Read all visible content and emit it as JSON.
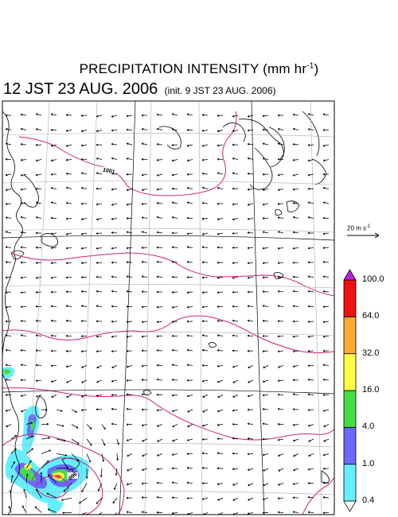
{
  "title": {
    "main": "PRECIPITATION INTENSITY (mm hr",
    "sup": "-1",
    "close": ")"
  },
  "subtitle": {
    "time": "12 JST 23 AUG. 2006",
    "init": "(init. 9 JST 23 AUG. 2006)"
  },
  "vector_scale": {
    "label": "20 m s",
    "sup": "-1"
  },
  "isobars": [
    {
      "label": "1001"
    },
    {
      "label": "996"
    }
  ],
  "colorbar": {
    "levels": [
      "0.4",
      "1.0",
      "4.0",
      "16.0",
      "32.0",
      "64.0",
      "100.0"
    ],
    "colors": [
      "#66eeff",
      "#6a6aff",
      "#44dd44",
      "#ffff44",
      "#ffaa33",
      "#ee1111"
    ],
    "over_color": "#bb22dd",
    "under_color": "#ffffff"
  },
  "colors": {
    "isobar": "#cc2277",
    "grid": "#aaaaaa",
    "coast": "#000000",
    "arrow": "#000000"
  }
}
